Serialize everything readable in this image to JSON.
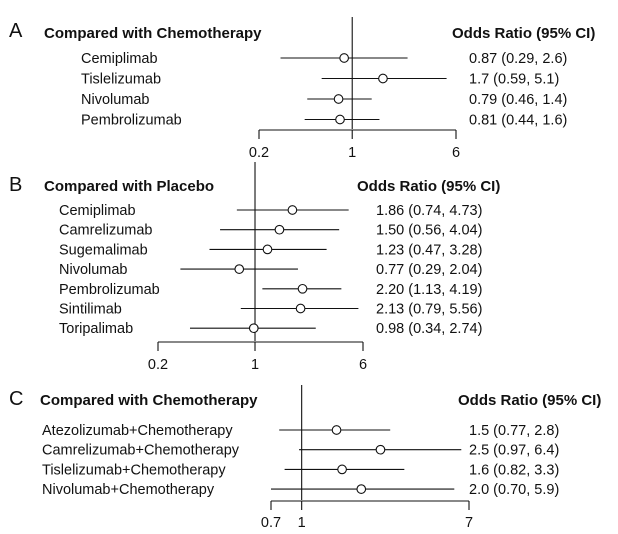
{
  "chart_data": [
    {
      "type": "forest",
      "panel": "A",
      "comparator_header": "Compared with Chemotherapy",
      "estimate_header": "Odds Ratio (95% CI)",
      "scale": "log",
      "xlim": [
        0.2,
        6
      ],
      "ticks": [
        0.2,
        1,
        6
      ],
      "tick_labels": [
        "0.2",
        "1",
        "6"
      ],
      "reference": 1,
      "rows": [
        {
          "label": "Cemiplimab",
          "or": 0.87,
          "lo": 0.29,
          "hi": 2.6,
          "ci_text": "0.87 (0.29, 2.6)"
        },
        {
          "label": "Tislelizumab",
          "or": 1.7,
          "lo": 0.59,
          "hi": 5.1,
          "ci_text": "1.7 (0.59, 5.1)"
        },
        {
          "label": "Nivolumab",
          "or": 0.79,
          "lo": 0.46,
          "hi": 1.4,
          "ci_text": "0.79 (0.46, 1.4)"
        },
        {
          "label": "Pembrolizumab",
          "or": 0.81,
          "lo": 0.44,
          "hi": 1.6,
          "ci_text": "0.81 (0.44, 1.6)"
        }
      ]
    },
    {
      "type": "forest",
      "panel": "B",
      "comparator_header": "Compared with Placebo",
      "estimate_header": "Odds Ratio (95% CI)",
      "scale": "log",
      "xlim": [
        0.2,
        6
      ],
      "ticks": [
        0.2,
        1,
        6
      ],
      "tick_labels": [
        "0.2",
        "1",
        "6"
      ],
      "reference": 1,
      "rows": [
        {
          "label": "Cemiplimab",
          "or": 1.86,
          "lo": 0.74,
          "hi": 4.73,
          "ci_text": "1.86 (0.74, 4.73)"
        },
        {
          "label": "Camrelizumab",
          "or": 1.5,
          "lo": 0.56,
          "hi": 4.04,
          "ci_text": "1.50 (0.56, 4.04)"
        },
        {
          "label": "Sugemalimab",
          "or": 1.23,
          "lo": 0.47,
          "hi": 3.28,
          "ci_text": "1.23 (0.47, 3.28)"
        },
        {
          "label": "Nivolumab",
          "or": 0.77,
          "lo": 0.29,
          "hi": 2.04,
          "ci_text": "0.77 (0.29, 2.04)"
        },
        {
          "label": "Pembrolizumab",
          "or": 2.2,
          "lo": 1.13,
          "hi": 4.19,
          "ci_text": "2.20 (1.13, 4.19)"
        },
        {
          "label": "Sintilimab",
          "or": 2.13,
          "lo": 0.79,
          "hi": 5.56,
          "ci_text": "2.13 (0.79, 5.56)"
        },
        {
          "label": "Toripalimab",
          "or": 0.98,
          "lo": 0.34,
          "hi": 2.74,
          "ci_text": "0.98 (0.34, 2.74)"
        }
      ]
    },
    {
      "type": "forest",
      "panel": "C",
      "comparator_header": "Compared with Chemotherapy",
      "estimate_header": "Odds Ratio (95% CI)",
      "scale": "log",
      "xlim": [
        0.7,
        7
      ],
      "ticks": [
        0.7,
        1,
        7
      ],
      "tick_labels": [
        "0.7",
        "1",
        "7"
      ],
      "reference": 1,
      "rows": [
        {
          "label": "Atezolizumab+Chemotherapy",
          "or": 1.5,
          "lo": 0.77,
          "hi": 2.8,
          "ci_text": "1.5 (0.77, 2.8)"
        },
        {
          "label": "Camrelizumab+Chemotherapy",
          "or": 2.5,
          "lo": 0.97,
          "hi": 6.4,
          "ci_text": "2.5 (0.97, 6.4)"
        },
        {
          "label": "Tislelizumab+Chemotherapy",
          "or": 1.6,
          "lo": 0.82,
          "hi": 3.3,
          "ci_text": "1.6 (0.82, 3.3)"
        },
        {
          "label": "Nivolumab+Chemotherapy",
          "or": 2.0,
          "lo": 0.7,
          "hi": 5.9,
          "ci_text": "2.0 (0.70, 5.9)"
        }
      ]
    }
  ]
}
